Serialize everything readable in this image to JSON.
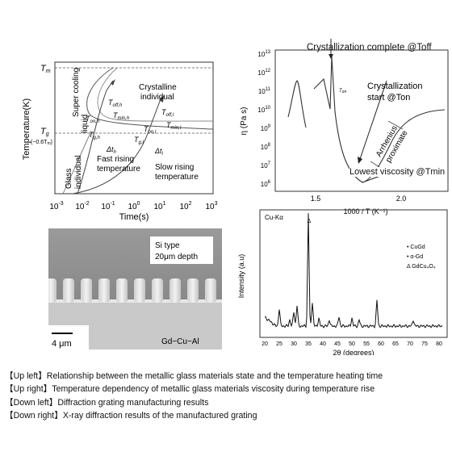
{
  "upper_left": {
    "y_axis_label": "Temperature(K)",
    "x_axis_label": "Time(s)",
    "tm_label": "T",
    "tm_sub": "m",
    "tg_label": "T",
    "tg_sub": "g",
    "tg_approx": "(~0.6T",
    "tg_approx_sub": "m",
    "tg_approx_end": ")",
    "x_tick_base": "10",
    "x_tick_exponents": [
      "-3",
      "-2",
      "-1",
      "0",
      "1",
      "2",
      "3"
    ],
    "region_supercooling": "Super cooling",
    "region_liquid": "liquid",
    "region_crystalline": "Crystalline",
    "region_individual": "individual",
    "region_glass": "Glass",
    "region_glass_individual": "individual",
    "fast_rising_line1": "Fast rising",
    "fast_rising_line2": "temperature",
    "slow_rising_line1": "Slow rising",
    "slow_rising_line2": "temperature",
    "t_on_h": "T",
    "t_on_h_sub": "on,h",
    "t_off_h": "T",
    "t_off_h_sub": "off,h",
    "t_min_h": "T",
    "t_min_h_sub": "min,h",
    "t_g_h": "T",
    "t_g_h_sub": "g,h",
    "delta_t_h": "Δt",
    "delta_t_h_sub": "h",
    "t_off_l": "T",
    "t_off_l_sub": "off,l",
    "t_min_l": "T",
    "t_min_l_sub": "min,l",
    "t_on_l": "T",
    "t_on_l_sub": "on,l",
    "t_g_l": "T",
    "t_g_l_sub": "g,l",
    "delta_t_l": "Δt",
    "delta_t_l_sub": "l"
  },
  "upper_right": {
    "title": "Crystallization complete @Toff",
    "y_axis_label": "η (Pa s)",
    "x_axis_label": "1000 / T (K⁻¹)",
    "y_tick_base": "10",
    "y_tick_exponents": [
      "13",
      "12",
      "11",
      "10",
      "9",
      "8",
      "7",
      "6"
    ],
    "x_ticks": [
      "1.5",
      "2.0"
    ],
    "ton_small": "T",
    "ton_small_sub": "on",
    "crystallization_start_line1": "Crystallization",
    "crystallization_start_line2": "start @Ton",
    "arrhenius_line1": "Arrhenius",
    "arrhenius_line2": "proximate",
    "lowest_viscosity": "Lowest viscosity @Tmin"
  },
  "lower_left": {
    "label_line1": "Si type",
    "label_line2": "20μm depth",
    "scale_bar": "4 μm",
    "material": "Gd−Cu−Al"
  },
  "lower_right": {
    "source_label": "Cu-Kα",
    "y_axis_label": "Intensity (a.u)",
    "x_axis_label": "2θ (degrees)",
    "x_ticks": [
      "20",
      "25",
      "30",
      "35",
      "40",
      "45",
      "50",
      "55",
      "60",
      "65",
      "70",
      "75",
      "80"
    ],
    "legend_cugd": "• CuGd",
    "legend_agd": "• α-Gd",
    "legend_gdcu4o4": "Δ GdCu₄O₄",
    "peak_marker_delta": "Δ"
  },
  "captions": [
    "【Up left】Relationship between the metallic glass materials state and the temperature heating time",
    "【Up right】Temperature dependency of metallic glass materials viscosity during temperature rise",
    "【Down left】Diffraction grating manufacturing results",
    "【Down right】X-ray diffraction results of the manufactured grating"
  ]
}
